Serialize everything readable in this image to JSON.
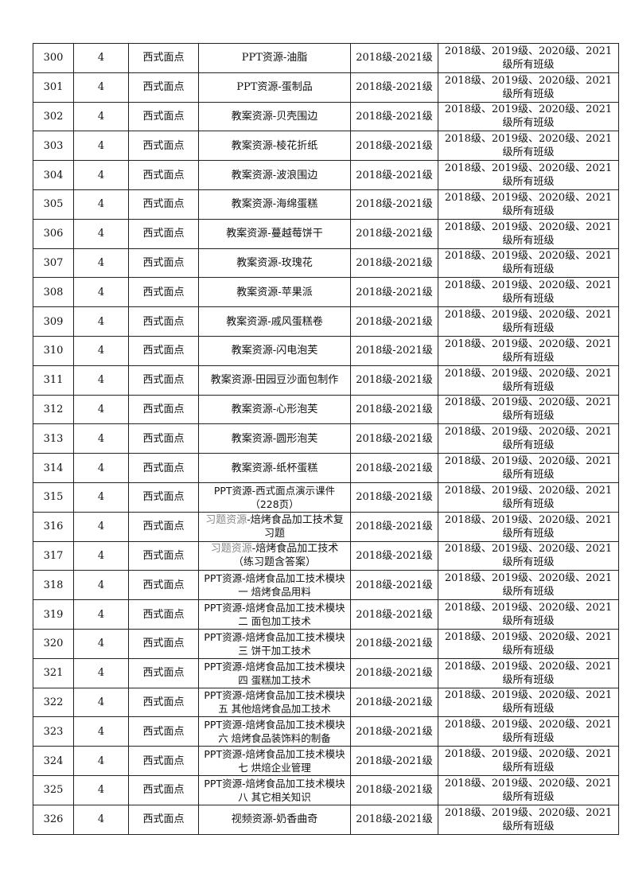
{
  "table": {
    "rows": [
      {
        "no": "300",
        "num": "4",
        "course": "西式面点",
        "resource_prefix": "",
        "resource": "PPT资源-油脂",
        "grade": "2018级-2021级",
        "classes": "2018级、2019级、2020级、2021级所有班级"
      },
      {
        "no": "301",
        "num": "4",
        "course": "西式面点",
        "resource_prefix": "",
        "resource": "PPT资源-蛋制品",
        "grade": "2018级-2021级",
        "classes": "2018级、2019级、2020级、2021级所有班级"
      },
      {
        "no": "302",
        "num": "4",
        "course": "西式面点",
        "resource_prefix": "",
        "resource": "教案资源-贝壳围边",
        "grade": "2018级-2021级",
        "classes": "2018级、2019级、2020级、2021级所有班级"
      },
      {
        "no": "303",
        "num": "4",
        "course": "西式面点",
        "resource_prefix": "",
        "resource": "教案资源-棱花折纸",
        "grade": "2018级-2021级",
        "classes": "2018级、2019级、2020级、2021级所有班级"
      },
      {
        "no": "304",
        "num": "4",
        "course": "西式面点",
        "resource_prefix": "",
        "resource": "教案资源-波浪围边",
        "grade": "2018级-2021级",
        "classes": "2018级、2019级、2020级、2021级所有班级"
      },
      {
        "no": "305",
        "num": "4",
        "course": "西式面点",
        "resource_prefix": "",
        "resource": "教案资源-海绵蛋糕",
        "grade": "2018级-2021级",
        "classes": "2018级、2019级、2020级、2021级所有班级"
      },
      {
        "no": "306",
        "num": "4",
        "course": "西式面点",
        "resource_prefix": "",
        "resource": "教案资源-蔓越莓饼干",
        "grade": "2018级-2021级",
        "classes": "2018级、2019级、2020级、2021级所有班级"
      },
      {
        "no": "307",
        "num": "4",
        "course": "西式面点",
        "resource_prefix": "",
        "resource": "教案资源-玫瑰花",
        "grade": "2018级-2021级",
        "classes": "2018级、2019级、2020级、2021级所有班级"
      },
      {
        "no": "308",
        "num": "4",
        "course": "西式面点",
        "resource_prefix": "",
        "resource": "教案资源-苹果派",
        "grade": "2018级-2021级",
        "classes": "2018级、2019级、2020级、2021级所有班级"
      },
      {
        "no": "309",
        "num": "4",
        "course": "西式面点",
        "resource_prefix": "",
        "resource": "教案资源-戚风蛋糕卷",
        "grade": "2018级-2021级",
        "classes": "2018级、2019级、2020级、2021级所有班级"
      },
      {
        "no": "310",
        "num": "4",
        "course": "西式面点",
        "resource_prefix": "",
        "resource": "教案资源-闪电泡芙",
        "grade": "2018级-2021级",
        "classes": "2018级、2019级、2020级、2021级所有班级"
      },
      {
        "no": "311",
        "num": "4",
        "course": "西式面点",
        "resource_prefix": "",
        "resource": "教案资源-田园豆沙面包制作",
        "grade": "2018级-2021级",
        "classes": "2018级、2019级、2020级、2021级所有班级"
      },
      {
        "no": "312",
        "num": "4",
        "course": "西式面点",
        "resource_prefix": "",
        "resource": "教案资源-心形泡芙",
        "grade": "2018级-2021级",
        "classes": "2018级、2019级、2020级、2021级所有班级"
      },
      {
        "no": "313",
        "num": "4",
        "course": "西式面点",
        "resource_prefix": "",
        "resource": "教案资源-圆形泡芙",
        "grade": "2018级-2021级",
        "classes": "2018级、2019级、2020级、2021级所有班级"
      },
      {
        "no": "314",
        "num": "4",
        "course": "西式面点",
        "resource_prefix": "",
        "resource": "教案资源-纸杯蛋糕",
        "grade": "2018级-2021级",
        "classes": "2018级、2019级、2020级、2021级所有班级"
      },
      {
        "no": "315",
        "num": "4",
        "course": "西式面点",
        "resource_prefix": "",
        "resource": "PPT资源-西式面点演示课件（228页）",
        "grade": "2018级-2021级",
        "classes": "2018级、2019级、2020级、2021级所有班级",
        "sans": true
      },
      {
        "no": "316",
        "num": "4",
        "course": "西式面点",
        "resource_prefix": "习题资源",
        "resource": "-焙烤食品加工技术复习题",
        "grade": "2018级-2021级",
        "classes": "2018级、2019级、2020级、2021级所有班级"
      },
      {
        "no": "317",
        "num": "4",
        "course": "西式面点",
        "resource_prefix": "习题资源",
        "resource": "-焙烤食品加工技术（练习题含答案）",
        "grade": "2018级-2021级",
        "classes": "2018级、2019级、2020级、2021级所有班级"
      },
      {
        "no": "318",
        "num": "4",
        "course": "西式面点",
        "resource_prefix": "",
        "resource": "PPT资源-焙烤食品加工技术模块一 焙烤食品用料",
        "grade": "2018级-2021级",
        "classes": "2018级、2019级、2020级、2021级所有班级",
        "sans": true
      },
      {
        "no": "319",
        "num": "4",
        "course": "西式面点",
        "resource_prefix": "",
        "resource": "PPT资源-焙烤食品加工技术模块二 面包加工技术",
        "grade": "2018级-2021级",
        "classes": "2018级、2019级、2020级、2021级所有班级",
        "sans": true
      },
      {
        "no": "320",
        "num": "4",
        "course": "西式面点",
        "resource_prefix": "",
        "resource": "PPT资源-焙烤食品加工技术模块三 饼干加工技术",
        "grade": "2018级-2021级",
        "classes": "2018级、2019级、2020级、2021级所有班级",
        "sans": true
      },
      {
        "no": "321",
        "num": "4",
        "course": "西式面点",
        "resource_prefix": "",
        "resource": "PPT资源-焙烤食品加工技术模块四 蛋糕加工技术",
        "grade": "2018级-2021级",
        "classes": "2018级、2019级、2020级、2021级所有班级",
        "sans": true
      },
      {
        "no": "322",
        "num": "4",
        "course": "西式面点",
        "resource_prefix": "",
        "resource": "PPT资源-焙烤食品加工技术模块五 其他焙烤食品加工技术",
        "grade": "2018级-2021级",
        "classes": "2018级、2019级、2020级、2021级所有班级",
        "sans": true
      },
      {
        "no": "323",
        "num": "4",
        "course": "西式面点",
        "resource_prefix": "",
        "resource": "PPT资源-焙烤食品加工技术模块六 焙烤食品装饰料的制备",
        "grade": "2018级-2021级",
        "classes": "2018级、2019级、2020级、2021级所有班级",
        "sans": true
      },
      {
        "no": "324",
        "num": "4",
        "course": "西式面点",
        "resource_prefix": "",
        "resource": "PPT资源-焙烤食品加工技术模块七 烘焙企业管理",
        "grade": "2018级-2021级",
        "classes": "2018级、2019级、2020级、2021级所有班级",
        "sans": true
      },
      {
        "no": "325",
        "num": "4",
        "course": "西式面点",
        "resource_prefix": "",
        "resource": "PPT资源-焙烤食品加工技术模块八 其它相关知识",
        "grade": "2018级-2021级",
        "classes": "2018级、2019级、2020级、2021级所有班级",
        "sans": true
      },
      {
        "no": "326",
        "num": "4",
        "course": "西式面点",
        "resource_prefix": "",
        "resource": "视频资源-奶香曲奇",
        "grade": "2018级-2021级",
        "classes": "2018级、2019级、2020级、2021级所有班级"
      }
    ]
  }
}
